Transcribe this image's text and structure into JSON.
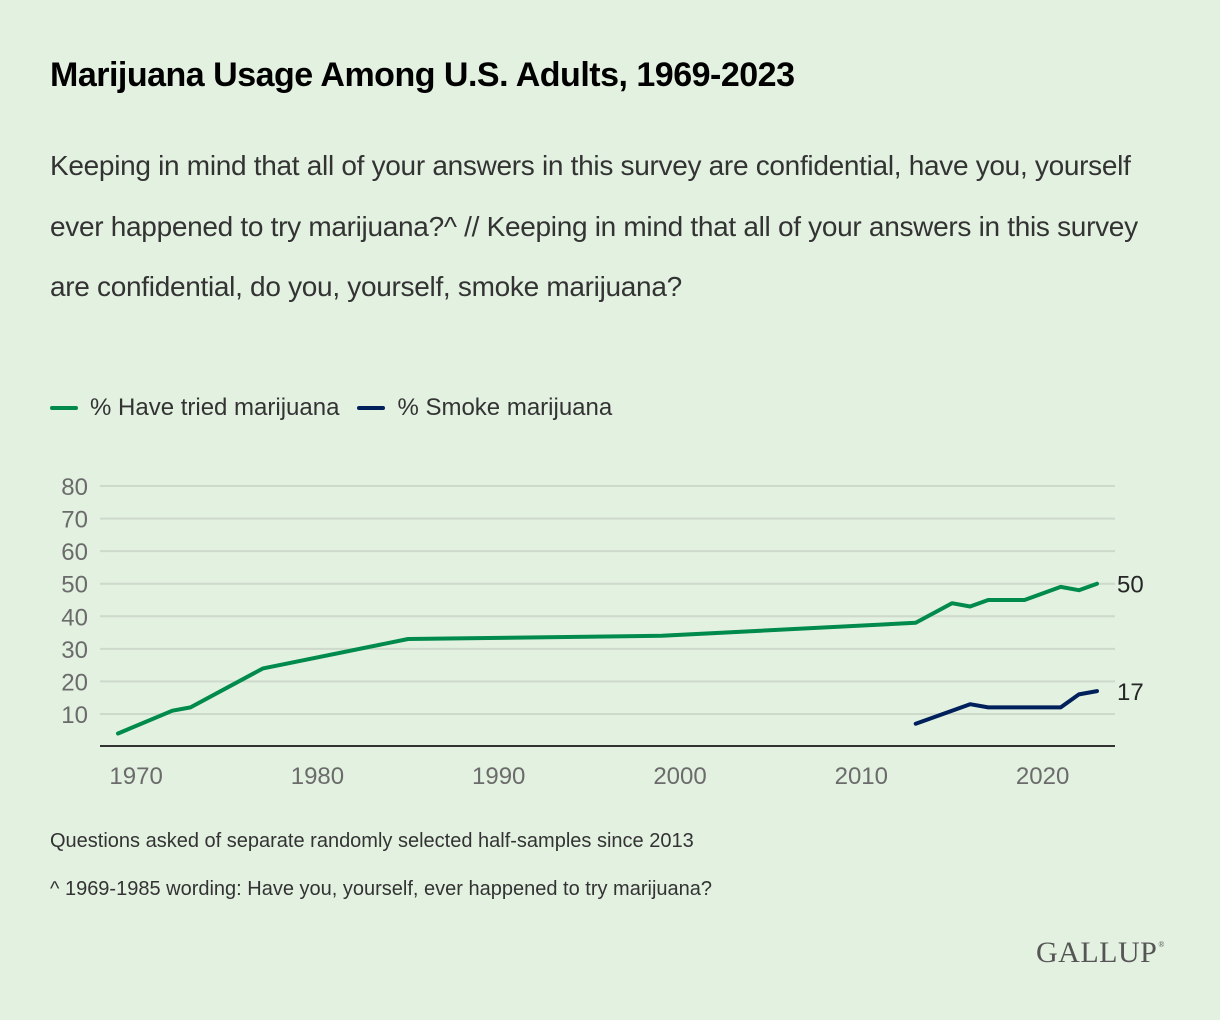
{
  "title": "Marijuana Usage Among U.S. Adults, 1969-2023",
  "subtitle": "Keeping in mind that all of your answers in this survey are confidential, have you, yourself ever happened to try marijuana?^ // Keeping in mind that all of your answers in this survey are confidential, do you, yourself, smoke marijuana?",
  "footnotes": [
    "Questions asked of separate randomly selected half-samples since 2013",
    "^ 1969-1985 wording: Have you, yourself, ever happened to try marijuana?"
  ],
  "logo": {
    "text": "GALLUP",
    "mark": "®"
  },
  "colors": {
    "background": "#e3f1e1",
    "tried": "#008a4b",
    "smoke": "#00205b",
    "grid": "#cdd9cb",
    "axis": "#333333"
  },
  "chart_data": {
    "type": "line",
    "title": "Marijuana Usage Among U.S. Adults, 1969-2023",
    "xlabel": "",
    "ylabel": "",
    "xlim": [
      1969,
      2023
    ],
    "ylim": [
      0,
      80
    ],
    "x_ticks": [
      1970,
      1980,
      1990,
      2000,
      2010,
      2020
    ],
    "y_ticks": [
      10,
      20,
      30,
      40,
      50,
      60,
      70,
      80
    ],
    "grid": true,
    "legend_position": "top-left",
    "series": [
      {
        "name": "% Have tried marijuana",
        "color": "#008a4b",
        "x": [
          1969,
          1972,
          1973,
          1977,
          1985,
          1999,
          2013,
          2015,
          2016,
          2017,
          2019,
          2021,
          2022,
          2023
        ],
        "values": [
          4,
          11,
          12,
          24,
          33,
          34,
          38,
          44,
          43,
          45,
          45,
          49,
          48,
          50
        ],
        "end_label": "50"
      },
      {
        "name": "% Smoke marijuana",
        "color": "#00205b",
        "x": [
          2013,
          2015,
          2016,
          2017,
          2019,
          2021,
          2022,
          2023
        ],
        "values": [
          7,
          11,
          13,
          12,
          12,
          12,
          16,
          17
        ],
        "end_label": "17"
      }
    ]
  }
}
